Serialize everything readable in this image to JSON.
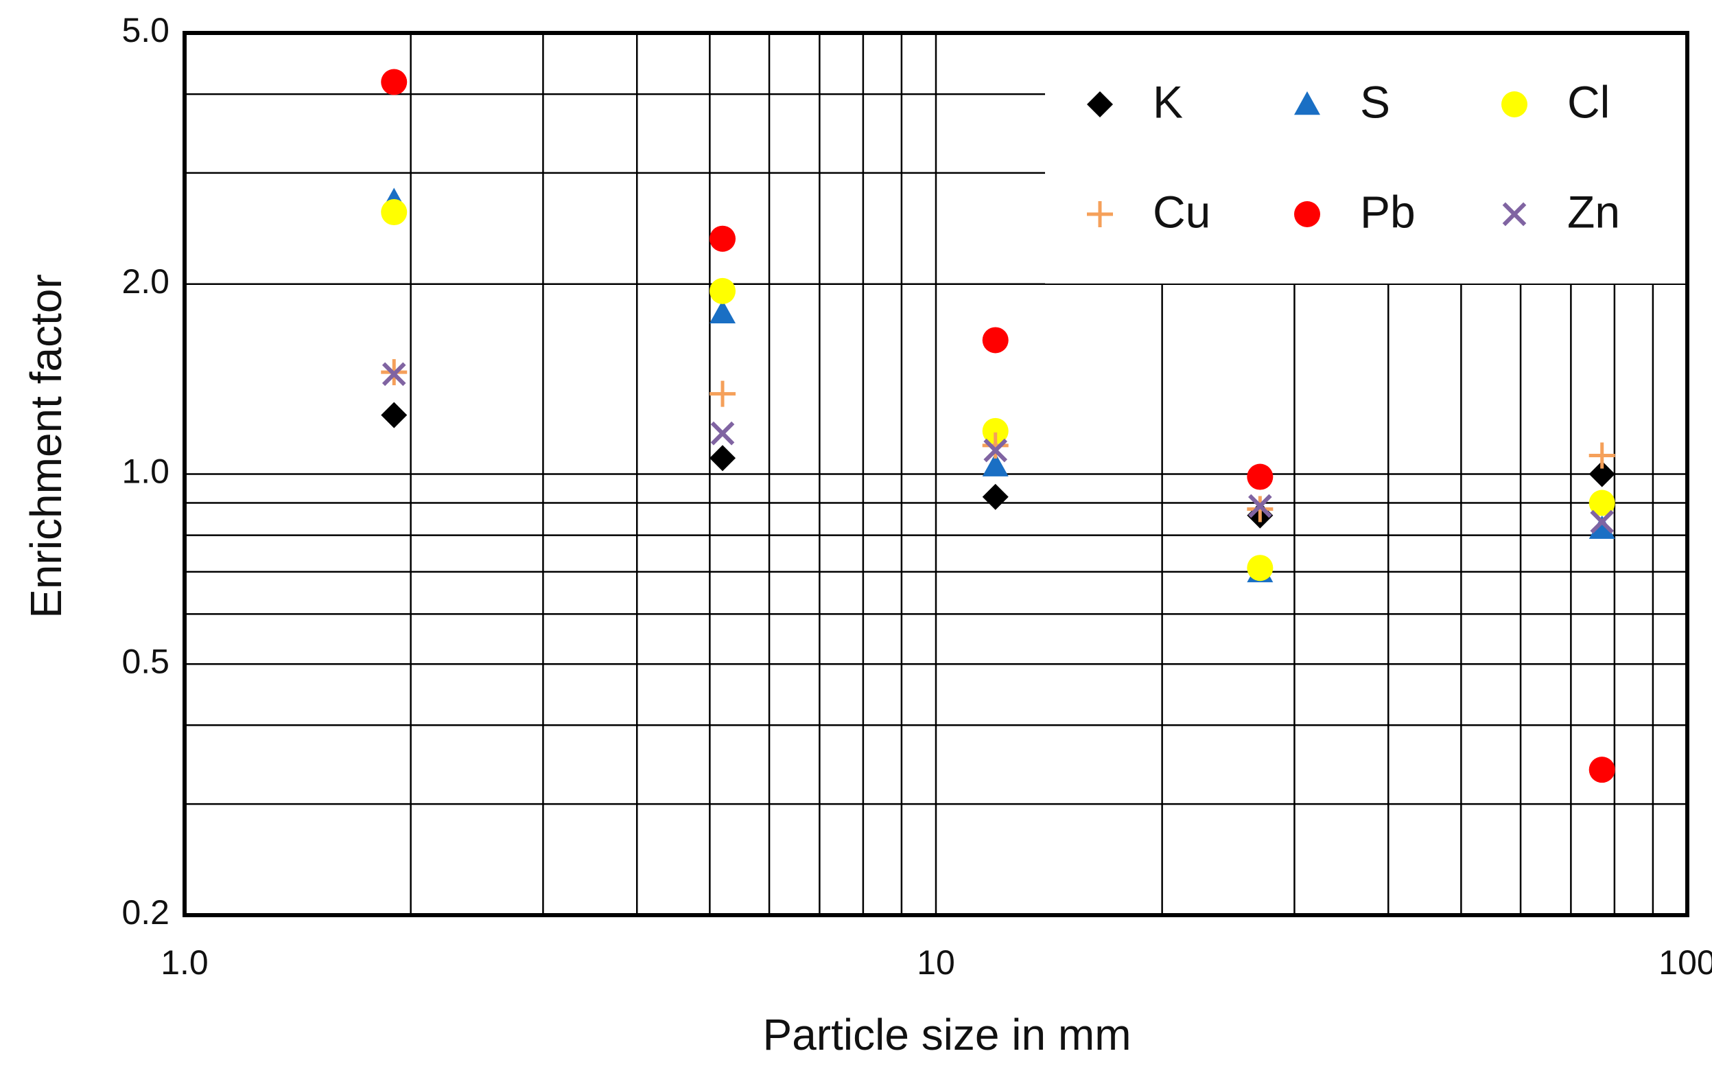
{
  "chart_data": {
    "type": "scatter",
    "xlabel": "Particle size  in mm",
    "ylabel": "Enrichment factor",
    "xscale": "log",
    "yscale": "log",
    "grid": true,
    "legend": "upper right",
    "xlim": [
      1,
      100
    ],
    "xticks": [
      {
        "value": 1,
        "label": "1.0"
      },
      10,
      100
    ],
    "x_minor_grid": [
      2,
      3,
      4,
      5,
      6,
      7,
      8,
      9,
      20,
      30,
      40,
      50,
      60,
      70,
      80,
      90
    ],
    "ylim": [
      0.2,
      5
    ],
    "yticks": [
      0.2,
      0.5,
      {
        "value": 1,
        "label": "1.0"
      },
      {
        "value": 2,
        "label": "2.0"
      },
      {
        "value": 5,
        "label": "5.0"
      }
    ],
    "y_minor_grid": [
      0.3,
      0.4,
      0.6,
      0.7,
      0.8,
      0.9,
      3,
      4
    ],
    "x": [
      1.9,
      5.2,
      12,
      27,
      77
    ],
    "series": [
      {
        "name": "K",
        "color": "#000000",
        "marker": "diamond",
        "values": [
          1.24,
          1.06,
          0.92,
          0.86,
          1.0
        ]
      },
      {
        "name": "S",
        "color": "#1a6fc4",
        "marker": "triangle",
        "values": [
          2.71,
          1.8,
          1.03,
          0.7,
          0.82
        ]
      },
      {
        "name": "Cl",
        "color": "#ffff00",
        "marker": "circle",
        "values": [
          2.6,
          1.95,
          1.17,
          0.71,
          0.9
        ]
      },
      {
        "name": "Cu",
        "color": "#f5a05a",
        "marker": "plus",
        "values": [
          1.45,
          1.34,
          1.11,
          0.88,
          1.07
        ]
      },
      {
        "name": "Pb",
        "color": "#ff0000",
        "marker": "circle",
        "values": [
          4.18,
          2.36,
          1.63,
          0.99,
          0.34
        ]
      },
      {
        "name": "Zn",
        "color": "#8064a2",
        "marker": "x",
        "values": [
          1.44,
          1.16,
          1.09,
          0.89,
          0.84
        ]
      }
    ]
  }
}
